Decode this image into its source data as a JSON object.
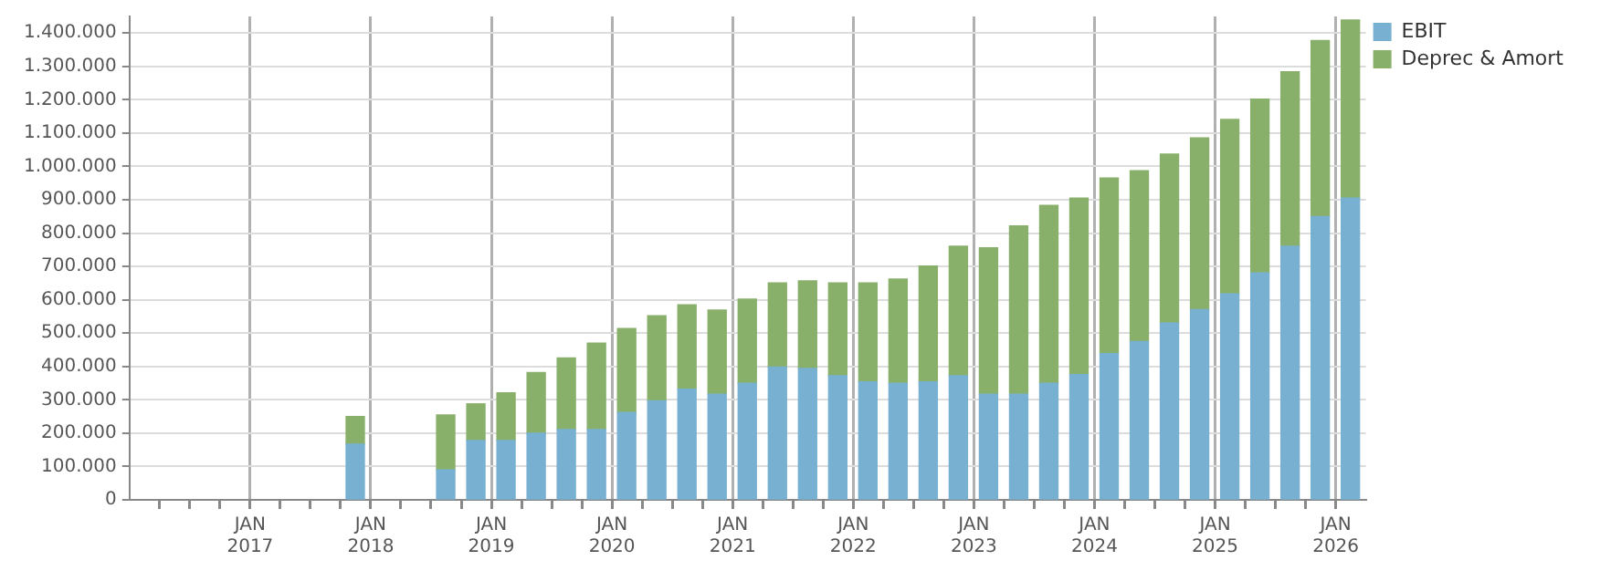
{
  "chart_data": {
    "type": "bar",
    "stacked": true,
    "x": [
      "2017-11-15",
      "2018-08-15",
      "2018-11-15",
      "2019-02-15",
      "2019-05-15",
      "2019-08-15",
      "2019-11-15",
      "2020-02-15",
      "2020-05-15",
      "2020-08-15",
      "2020-11-15",
      "2021-02-15",
      "2021-05-15",
      "2021-08-15",
      "2021-11-15",
      "2022-02-15",
      "2022-05-15",
      "2022-08-15",
      "2022-11-15",
      "2023-02-15",
      "2023-05-15",
      "2023-08-15",
      "2023-11-15",
      "2024-02-15",
      "2024-05-15",
      "2024-08-15",
      "2024-11-15",
      "2025-02-15",
      "2025-05-15",
      "2025-08-15",
      "2025-11-15",
      "2026-02-15"
    ],
    "series": [
      {
        "name": "EBIT",
        "color": "#78b0d2",
        "values": [
          167000,
          90000,
          178000,
          178000,
          200000,
          211000,
          211000,
          262000,
          297000,
          332000,
          317000,
          350000,
          398000,
          394000,
          372000,
          354000,
          350000,
          354000,
          372000,
          317000,
          317000,
          350000,
          376000,
          439000,
          475000,
          530000,
          571000,
          618000,
          681000,
          761000,
          850000,
          905000
        ]
      },
      {
        "name": "Deprec & Amort",
        "color": "#88b06a",
        "values": [
          83000,
          165000,
          110000,
          143000,
          182000,
          215000,
          259000,
          252000,
          255000,
          253000,
          252000,
          252000,
          253000,
          263000,
          279000,
          297000,
          312000,
          347000,
          389000,
          439000,
          505000,
          533000,
          529000,
          526000,
          512000,
          507000,
          515000,
          523000,
          521000,
          523000,
          528000,
          534000
        ]
      }
    ],
    "xlim": [
      "2016-01",
      "2026-04"
    ],
    "xticks": [
      {
        "value": "2016-04",
        "label": null
      },
      {
        "value": "2016-07",
        "label": null
      },
      {
        "value": "2016-10",
        "label": null
      },
      {
        "value": "2017-01",
        "label": "JAN 2017"
      },
      {
        "value": "2017-04",
        "label": null
      },
      {
        "value": "2017-07",
        "label": null
      },
      {
        "value": "2017-10",
        "label": null
      },
      {
        "value": "2018-01",
        "label": "JAN 2018"
      },
      {
        "value": "2018-04",
        "label": null
      },
      {
        "value": "2018-07",
        "label": null
      },
      {
        "value": "2018-10",
        "label": null
      },
      {
        "value": "2019-01",
        "label": "JAN 2019"
      },
      {
        "value": "2019-04",
        "label": null
      },
      {
        "value": "2019-07",
        "label": null
      },
      {
        "value": "2019-10",
        "label": null
      },
      {
        "value": "2020-01",
        "label": "JAN 2020"
      },
      {
        "value": "2020-04",
        "label": null
      },
      {
        "value": "2020-07",
        "label": null
      },
      {
        "value": "2020-10",
        "label": null
      },
      {
        "value": "2021-01",
        "label": "JAN 2021"
      },
      {
        "value": "2021-04",
        "label": null
      },
      {
        "value": "2021-07",
        "label": null
      },
      {
        "value": "2021-10",
        "label": null
      },
      {
        "value": "2022-01",
        "label": "JAN 2022"
      },
      {
        "value": "2022-04",
        "label": null
      },
      {
        "value": "2022-07",
        "label": null
      },
      {
        "value": "2022-10",
        "label": null
      },
      {
        "value": "2023-01",
        "label": "JAN 2023"
      },
      {
        "value": "2023-04",
        "label": null
      },
      {
        "value": "2023-07",
        "label": null
      },
      {
        "value": "2023-10",
        "label": null
      },
      {
        "value": "2024-01",
        "label": "JAN 2024"
      },
      {
        "value": "2024-04",
        "label": null
      },
      {
        "value": "2024-07",
        "label": null
      },
      {
        "value": "2024-10",
        "label": null
      },
      {
        "value": "2025-01",
        "label": "JAN 2025"
      },
      {
        "value": "2025-04",
        "label": null
      },
      {
        "value": "2025-07",
        "label": null
      },
      {
        "value": "2025-10",
        "label": null
      },
      {
        "value": "2026-01",
        "label": "JAN 2026"
      }
    ],
    "ylim": [
      0,
      1450000
    ],
    "yticks": [
      0,
      {
        "value": 100000,
        "label": "100.000"
      },
      {
        "value": 200000,
        "label": "200.000"
      },
      {
        "value": 300000,
        "label": "300.000"
      },
      {
        "value": 400000,
        "label": "400.000"
      },
      {
        "value": 500000,
        "label": "500.000"
      },
      {
        "value": 600000,
        "label": "600.000"
      },
      {
        "value": 700000,
        "label": "700.000"
      },
      {
        "value": 800000,
        "label": "800.000"
      },
      {
        "value": 900000,
        "label": "900.000"
      },
      {
        "value": 1000000,
        "label": "1.000.000"
      },
      {
        "value": 1100000,
        "label": "1.100.000"
      },
      {
        "value": 1200000,
        "label": "1.200.000"
      },
      {
        "value": 1300000,
        "label": "1.300.000"
      },
      {
        "value": 1400000,
        "label": "1.400.000"
      }
    ],
    "grid": true,
    "legend": "top right"
  }
}
